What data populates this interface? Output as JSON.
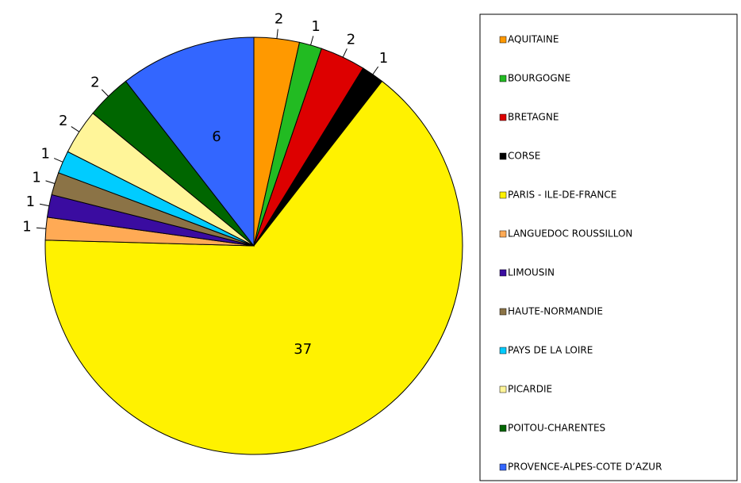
{
  "chart_data": {
    "type": "pie",
    "categories": [
      "AQUITAINE",
      "BOURGOGNE",
      "BRETAGNE",
      "CORSE",
      "PARIS - ILE-DE-FRANCE",
      "LANGUEDOC ROUSSILLON",
      "LIMOUSIN",
      "HAUTE-NORMANDIE",
      "PAYS DE LA LOIRE",
      "PICARDIE",
      "POITOU-CHARENTES",
      "PROVENCE-ALPES-COTE D’AZUR"
    ],
    "values": [
      2,
      1,
      2,
      1,
      37,
      1,
      1,
      1,
      1,
      2,
      2,
      6
    ],
    "colors": [
      "#ff9900",
      "#22bb22",
      "#dd0000",
      "#000000",
      "#fff200",
      "#ffaa55",
      "#3a0ca0",
      "#8b7346",
      "#00ccff",
      "#fff599",
      "#006600",
      "#3366ff"
    ],
    "legend": "right"
  }
}
